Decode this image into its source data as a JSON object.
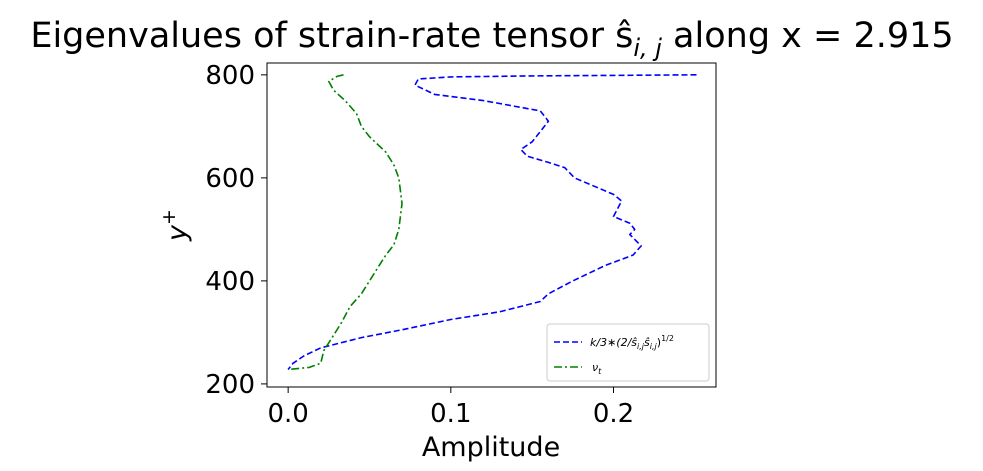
{
  "chart_data": {
    "type": "line",
    "title": "Eigenvalues of strain-rate tensor ŝ",
    "title_sub": "i, j",
    "title_suffix": " along x = 2.915",
    "xlabel": "Amplitude",
    "ylabel_base": "y",
    "ylabel_sup": "+",
    "xlim": [
      -0.013,
      0.263
    ],
    "ylim": [
      194,
      823
    ],
    "xticks": [
      0.0,
      0.1,
      0.2
    ],
    "xtick_labels": [
      "0.0",
      "0.1",
      "0.2"
    ],
    "yticks": [
      200,
      400,
      600,
      800
    ],
    "ytick_labels": [
      "200",
      "400",
      "600",
      "800"
    ],
    "grid": false,
    "legend_position": "lower right",
    "series": [
      {
        "name": "k/3*(2/ŝi,jŝi,j)^1/2",
        "legend_pre": "k/3∗(2/ŝ",
        "legend_sub1": "i,j",
        "legend_mid": "ŝ",
        "legend_sub2": "i,j",
        "legend_post": ")",
        "legend_sup": "1/2",
        "color": "#0000ff",
        "dash": "dashed",
        "x": [
          0.251,
          0.2,
          0.15,
          0.1,
          0.08,
          0.078,
          0.09,
          0.12,
          0.155,
          0.16,
          0.155,
          0.15,
          0.143,
          0.147,
          0.16,
          0.17,
          0.176,
          0.2,
          0.205,
          0.2,
          0.21,
          0.213,
          0.21,
          0.217,
          0.212,
          0.195,
          0.175,
          0.16,
          0.155,
          0.13,
          0.1,
          0.07,
          0.045,
          0.02,
          0.01,
          0.003,
          0.0
        ],
        "y": [
          800,
          799,
          798,
          796,
          792,
          780,
          762,
          750,
          730,
          710,
          690,
          670,
          655,
          642,
          630,
          620,
          600,
          568,
          555,
          525,
          512,
          500,
          490,
          468,
          450,
          430,
          400,
          375,
          360,
          340,
          325,
          305,
          290,
          270,
          255,
          240,
          228
        ]
      },
      {
        "name": "νt",
        "legend_pre": "ν",
        "legend_sub1": "t",
        "color": "#008000",
        "dash": "dashdot",
        "x": [
          0.034,
          0.03,
          0.025,
          0.028,
          0.035,
          0.042,
          0.045,
          0.05,
          0.06,
          0.065,
          0.068,
          0.069,
          0.07,
          0.069,
          0.068,
          0.065,
          0.06,
          0.055,
          0.05,
          0.045,
          0.038,
          0.033,
          0.027,
          0.022,
          0.02,
          0.013,
          0.0
        ],
        "y": [
          800,
          797,
          787,
          770,
          750,
          725,
          700,
          680,
          650,
          625,
          600,
          575,
          550,
          525,
          500,
          470,
          450,
          425,
          400,
          375,
          350,
          320,
          290,
          265,
          240,
          232,
          228
        ]
      }
    ]
  }
}
